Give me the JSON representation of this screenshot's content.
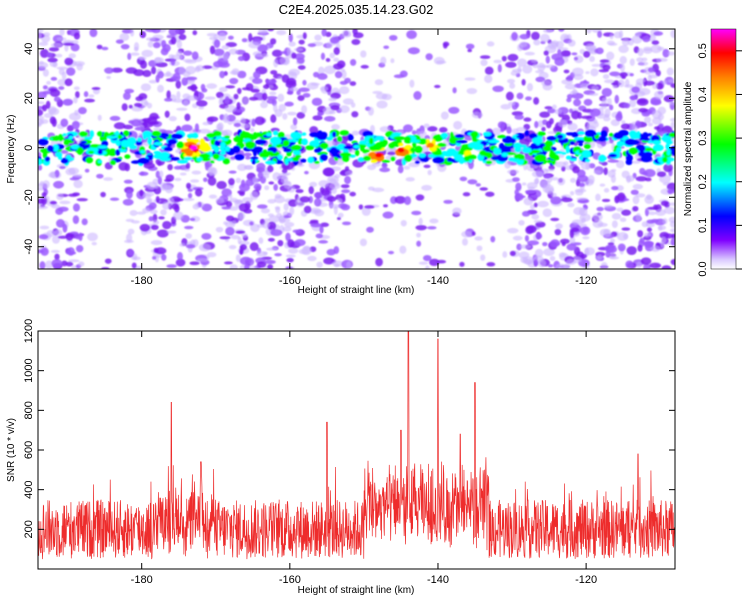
{
  "title": "C2E4.2025.035.14.23.G02",
  "chart_data": [
    {
      "type": "heatmap",
      "description_of_content": "spectrogram",
      "xlabel": "Height of straight line (km)",
      "ylabel": "Frequency (Hz)",
      "xlim": [
        -194,
        -108
      ],
      "ylim": [
        -49,
        48
      ],
      "xticks": [
        -180,
        -160,
        -140,
        -120
      ],
      "yticks": [
        -40,
        -20,
        0,
        20,
        40
      ],
      "colorbar": {
        "label": "Normalized spectral amplitude",
        "range": [
          0.0,
          0.55
        ],
        "ticks": [
          0.0,
          0.1,
          0.2,
          0.3,
          0.4,
          0.5
        ],
        "colors": [
          "#ffffff",
          "#7f00ff",
          "#0000ff",
          "#00ffff",
          "#00ff00",
          "#ffff00",
          "#ff7f00",
          "#ff0000",
          "#ff00ff"
        ]
      },
      "signal_band_hz": [
        -5,
        5
      ],
      "hotspots": [
        {
          "x": -173,
          "y": 0,
          "value": 0.52
        },
        {
          "x": -148,
          "y": -3,
          "value": 0.48
        },
        {
          "x": -145,
          "y": -1,
          "value": 0.45
        },
        {
          "x": -141,
          "y": 1,
          "value": 0.42
        },
        {
          "x": -136,
          "y": -2,
          "value": 0.35
        }
      ]
    },
    {
      "type": "line",
      "xlabel": "Height of straight line (km)",
      "ylabel": "SNR (10 * v/v)",
      "xlim": [
        -194,
        -108
      ],
      "ylim": [
        0,
        1200
      ],
      "xticks": [
        -180,
        -160,
        -140,
        -120
      ],
      "yticks": [
        200,
        400,
        600,
        800,
        1000,
        1200
      ],
      "series_color": "#ee2c2c",
      "baseline_range": [
        50,
        350
      ],
      "peaks": [
        {
          "x": -176,
          "y": 840
        },
        {
          "x": -172,
          "y": 540
        },
        {
          "x": -155,
          "y": 740
        },
        {
          "x": -145,
          "y": 700
        },
        {
          "x": -144,
          "y": 1200
        },
        {
          "x": -140,
          "y": 1160
        },
        {
          "x": -137,
          "y": 680
        },
        {
          "x": -135,
          "y": 940
        },
        {
          "x": -113,
          "y": 580
        }
      ]
    }
  ]
}
